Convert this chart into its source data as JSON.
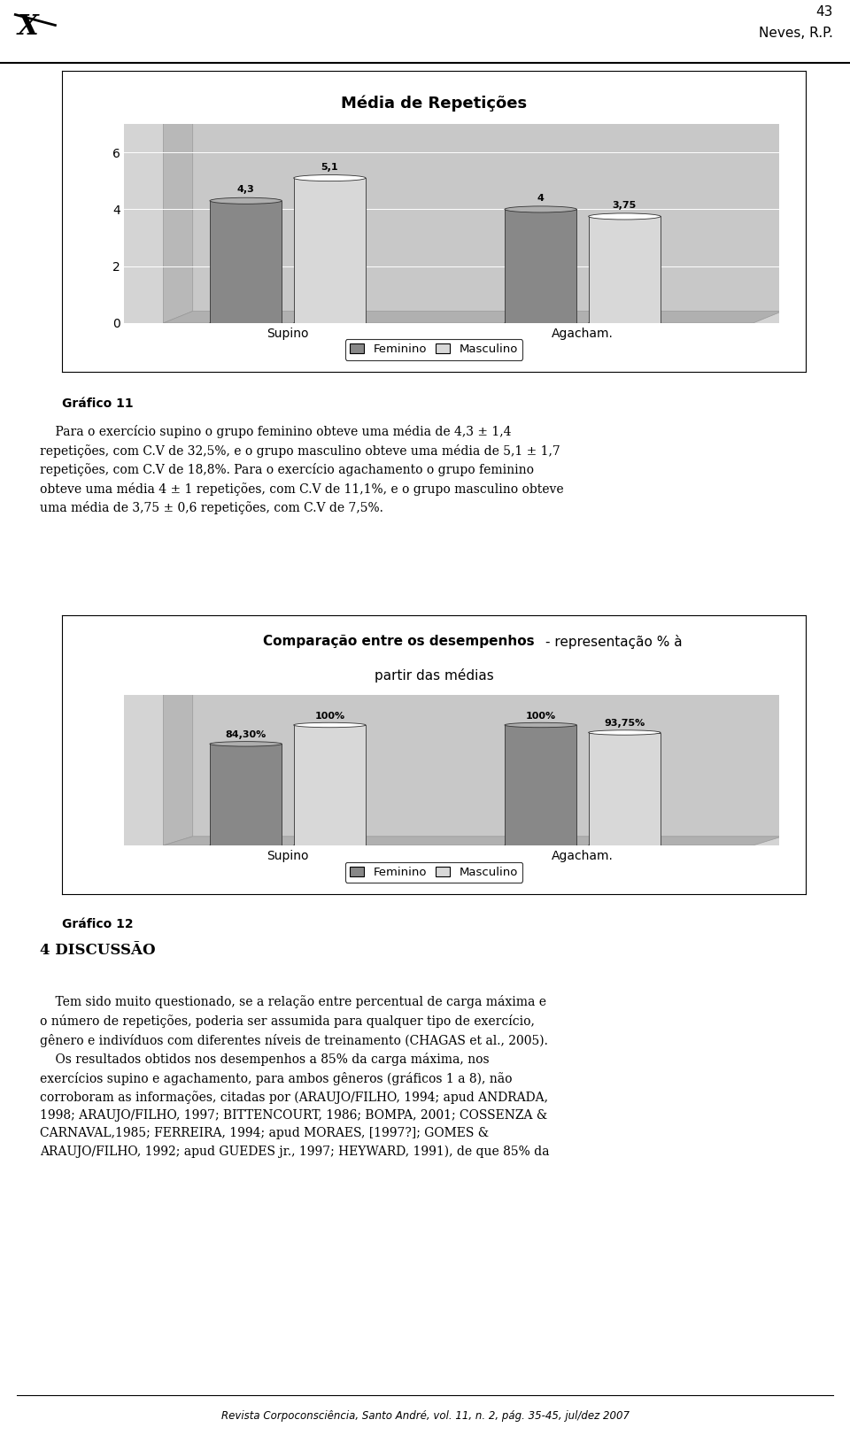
{
  "chart1_title": "Média de Repetições",
  "chart1_categories": [
    "Supino",
    "Agacham."
  ],
  "chart1_feminino": [
    4.3,
    4.0
  ],
  "chart1_masculino": [
    5.1,
    3.75
  ],
  "chart1_yticks": [
    0,
    2,
    4,
    6
  ],
  "chart1_ylim": [
    0,
    7.0
  ],
  "chart1_labels_fem": [
    "4,3",
    "4"
  ],
  "chart1_labels_masc": [
    "5,1",
    "3,75"
  ],
  "chart2_title_bold": "Comparação entre os desempenhos",
  "chart2_title_normal": " - representação % à\npartir das médias",
  "chart2_categories": [
    "Supino",
    "Agacham."
  ],
  "chart2_feminino": [
    84.3,
    100.0
  ],
  "chart2_masculino": [
    100.0,
    93.75
  ],
  "chart2_labels_fem": [
    "84,30%",
    "100%"
  ],
  "chart2_labels_masc": [
    "100%",
    "93,75%"
  ],
  "chart2_ylim": [
    0,
    125
  ],
  "legend_feminino": "Feminino",
  "legend_masculino": "Masculino",
  "fem_color": "#888888",
  "masc_color": "#d8d8d8",
  "chart_bg": "#d4d4d4",
  "wall_back": "#cccccc",
  "wall_left": "#bbbbbb",
  "wall_floor": "#aaaaaa",
  "page_bg": "#ffffff",
  "grafico11_label": "Gráfico 11",
  "grafico12_label": "Gráfico 12",
  "header_number": "43",
  "header_name": "Neves, R.P.",
  "body_text1_indent": "    Para o exercício supino o grupo feminino obteve uma média de 4,3 ± 1,4\nrepetições, com C.V de 32,5%, e o grupo masculino obteve uma média de 5,1 ± 1,7\nrepetições, com C.V de 18,8%. Para o exercício agachamento o grupo feminino\nobteve uma média 4 ± 1 repetições, com C.V de 11,1%, e o grupo masculino obteve\numa média de 3,75 ± 0,6 repetições, com C.V de 7,5%.",
  "discussion_title": "4 DISCUSSÃO",
  "body_text2": "    Tem sido muito questionado, se a relação entre percentual de carga máxima e\no número de repetições, poderia ser assumida para qualquer tipo de exercício,\ngênero e indivíduos com diferentes níveis de treinamento (CHAGAS et al., 2005).\n    Os resultados obtidos nos desempenhos a 85% da carga máxima, nos\nexercícios supino e agachamento, para ambos gêneros (gráficos 1 a 8), não\ncorroboram as informações, citadas por (ARAUJO/FILHO, 1994; apud ANDRADA,\n1998; ARAUJO/FILHO, 1997; BITTENCOURT, 1986; BOMPA, 2001; COSSENZA &\nCARNAVAL,1985; FERREIRA, 1994; apud MORAES, [1997?]; GOMES &\nARAUJO/FILHO, 1992; apud GUEDES jr., 1997; HEYWARD, 1991), de que 85% da",
  "footer_text": "Revista Corpoconsciência, Santo André, vol. 11, n. 2, pág. 35-45, jul/dez 2007"
}
